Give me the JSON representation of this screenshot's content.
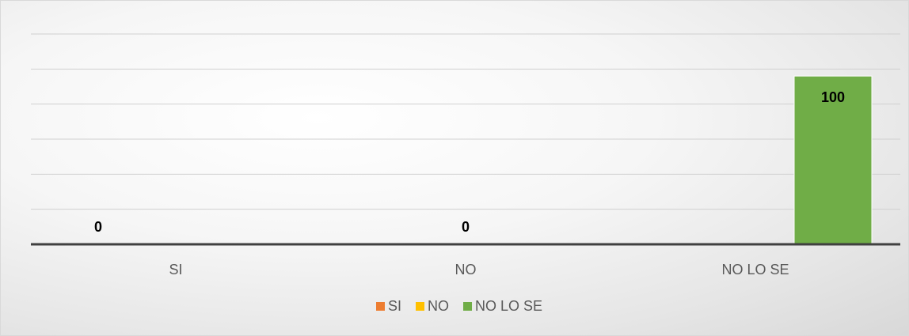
{
  "chart_data": {
    "type": "bar",
    "categories": [
      "SI",
      "NO",
      "NO LO SE"
    ],
    "series": [
      {
        "name": "SI",
        "color": "#ED7D31",
        "values": [
          0,
          null,
          null
        ]
      },
      {
        "name": "NO",
        "color": "#FFC000",
        "values": [
          null,
          0,
          null
        ]
      },
      {
        "name": "NO LO SE",
        "color": "#70AD47",
        "values": [
          null,
          null,
          100
        ]
      }
    ],
    "data_labels": [
      "0",
      "0",
      "100"
    ],
    "ylim": [
      0,
      125
    ],
    "grid": true,
    "legend": "bottom",
    "title": "",
    "xlabel": "",
    "ylabel": ""
  }
}
